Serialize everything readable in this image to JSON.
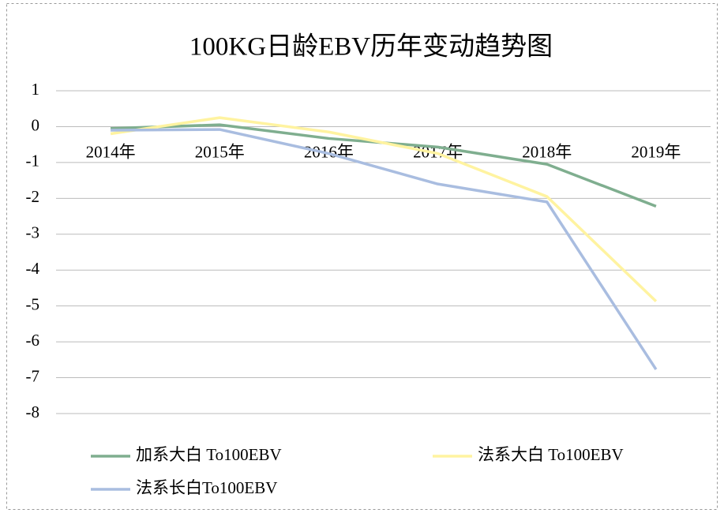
{
  "chart_data": {
    "type": "line",
    "title": "100KG日龄EBV历年变动趋势图",
    "categories": [
      "2014年",
      "2015年",
      "2016年",
      "2017年",
      "2018年",
      "2019年"
    ],
    "series": [
      {
        "name": "加系大白 To100EBV",
        "color": "#7fae8f",
        "values": [
          -0.05,
          0.05,
          -0.33,
          -0.57,
          -1.05,
          -2.22
        ]
      },
      {
        "name": "法系大白 To100EBV",
        "color": "#fff3a0",
        "values": [
          -0.2,
          0.25,
          -0.15,
          -0.75,
          -1.95,
          -4.87
        ]
      },
      {
        "name": "法系长白To100EBV",
        "color": "#a9bde0",
        "values": [
          -0.1,
          -0.08,
          -0.75,
          -1.6,
          -2.1,
          -6.77
        ]
      }
    ],
    "ylim": [
      -8,
      1
    ],
    "yticks": [
      -8,
      -7,
      -6,
      -5,
      -4,
      -3,
      -2,
      -1,
      0,
      1
    ],
    "grid": true,
    "legend": "bottom"
  }
}
